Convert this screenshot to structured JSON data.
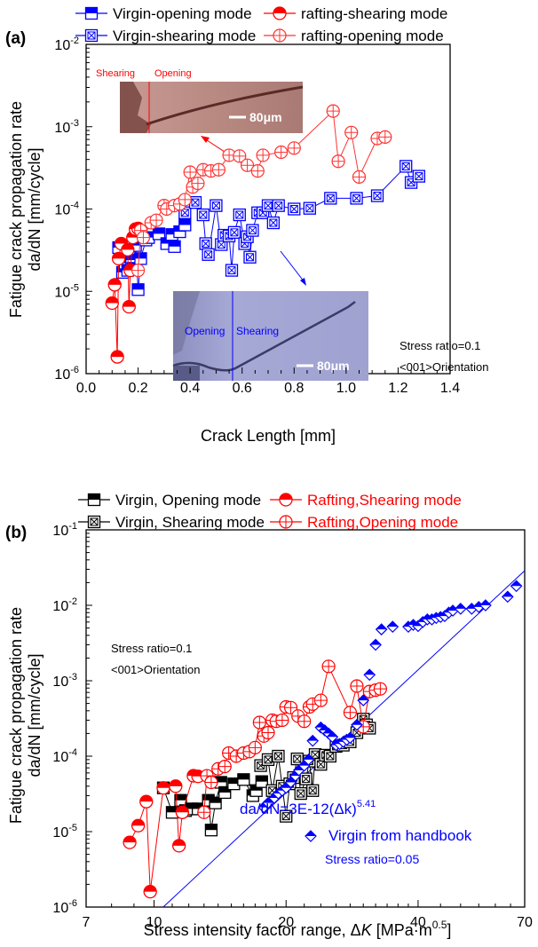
{
  "chart_data": [
    {
      "panel_label": "(a)",
      "type": "scatter",
      "xlabel": "Crack Length [mm]",
      "ylabel_line1": "Fatigue crack propagation rate",
      "ylabel_line2": "da/dN [mm/cycle]",
      "xscale": "linear",
      "yscale": "log",
      "xlim": [
        0.0,
        1.4
      ],
      "ylim": [
        1e-06,
        0.01
      ],
      "xticks": [
        "0.0",
        "0.2",
        "0.4",
        "0.6",
        "0.8",
        "1.0",
        "1.2",
        "1.4"
      ],
      "xtick_values": [
        0.0,
        0.2,
        0.4,
        0.6,
        0.8,
        1.0,
        1.2,
        1.4
      ],
      "yticks": [
        {
          "base": "10",
          "exp": "-6",
          "value": 1e-06
        },
        {
          "base": "10",
          "exp": "-5",
          "value": 1e-05
        },
        {
          "base": "10",
          "exp": "-4",
          "value": 0.0001
        },
        {
          "base": "10",
          "exp": "-3",
          "value": 0.001
        },
        {
          "base": "10",
          "exp": "-2",
          "value": 0.01
        }
      ],
      "legend_position": "top",
      "legend": [
        {
          "label": "Virgin-opening mode",
          "color": "#0000ff",
          "marker": "half-square"
        },
        {
          "label": "rafting-shearing mode",
          "color": "#ff0000",
          "marker": "half-circle"
        },
        {
          "label": "Virgin-shearing mode",
          "color": "#0000ff",
          "marker": "crossed-square"
        },
        {
          "label": "rafting-opening mode",
          "color": "#ff3333",
          "marker": "crossed-circle"
        }
      ],
      "annotations": [
        {
          "text": "Stress ratio=0.1"
        },
        {
          "text": "<001>Orientation"
        },
        {
          "text": "Shearing",
          "color": "#ff0000"
        },
        {
          "text": "Opening",
          "color": "#ff0000"
        },
        {
          "text": "Opening",
          "color": "#0000ff"
        },
        {
          "text": "Shearing",
          "color": "#0000ff"
        },
        {
          "text": "80μm"
        },
        {
          "text": "80μm"
        }
      ],
      "series": [
        {
          "name": "Virgin-opening mode",
          "color": "#0000ff",
          "marker": "half-square",
          "x": [
            0.125,
            0.14,
            0.15,
            0.16,
            0.175,
            0.18,
            0.19,
            0.2,
            0.21,
            0.23,
            0.24,
            0.28,
            0.31,
            0.33,
            0.34,
            0.36,
            0.38
          ],
          "y": [
            3.4e-05,
            1.7e-05,
            2.2e-05,
            1.8e-05,
            2.4e-05,
            1.9e-05,
            3.6e-05,
            1.05e-05,
            2.5e-05,
            4.2e-05,
            4.5e-05,
            5e-05,
            3.8e-05,
            4.9e-05,
            3.5e-05,
            5.3e-05,
            6.4e-05
          ]
        },
        {
          "name": "Virgin-shearing mode",
          "color": "#0000ff",
          "marker": "crossed-square",
          "x": [
            0.38,
            0.42,
            0.45,
            0.46,
            0.47,
            0.5,
            0.52,
            0.53,
            0.55,
            0.56,
            0.57,
            0.59,
            0.61,
            0.62,
            0.63,
            0.64,
            0.66,
            0.68,
            0.7,
            0.72,
            0.74,
            0.8,
            0.86,
            0.94,
            1.04,
            1.12,
            1.23,
            1.25,
            1.28
          ],
          "y": [
            9e-05,
            0.00012,
            8.5e-05,
            3.8e-05,
            2.8e-05,
            0.00011,
            3.7e-05,
            4.8e-05,
            4.7e-05,
            1.8e-05,
            5.2e-05,
            8.5e-05,
            3.8e-05,
            4.6e-05,
            2.6e-05,
            5.5e-05,
            9e-05,
            9e-05,
            0.00011,
            6.8e-05,
            0.00011,
            0.0001,
            0.000102,
            0.000135,
            0.000135,
            0.000145,
            0.00033,
            0.00021,
            0.00025
          ]
        },
        {
          "name": "rafting-shearing mode",
          "color": "#ff0000",
          "marker": "half-circle",
          "x": [
            0.1,
            0.11,
            0.12,
            0.125,
            0.135,
            0.16,
            0.165,
            0.17,
            0.18,
            0.19,
            0.2
          ],
          "y": [
            7.2e-06,
            1.2e-05,
            1.6e-06,
            2.5e-05,
            3.8e-05,
            3.2e-05,
            6.5e-06,
            1.8e-05,
            4.5e-05,
            5.7e-05,
            5.8e-05
          ]
        },
        {
          "name": "rafting-opening mode",
          "color": "#ff3333",
          "marker": "crossed-circle",
          "x": [
            0.2,
            0.21,
            0.22,
            0.25,
            0.27,
            0.3,
            0.31,
            0.34,
            0.36,
            0.38,
            0.4,
            0.41,
            0.43,
            0.45,
            0.48,
            0.51,
            0.55,
            0.59,
            0.62,
            0.66,
            0.68,
            0.75,
            0.8,
            0.95,
            0.97,
            1.02,
            1.05,
            1.12,
            1.15
          ],
          "y": [
            1.8e-05,
            5.5e-05,
            4.5e-05,
            6.8e-05,
            7.3e-05,
            0.00011,
            0.0001,
            0.00011,
            0.000115,
            0.00013,
            0.00028,
            0.000185,
            0.000205,
            0.0003,
            0.00029,
            0.0003,
            0.00045,
            0.00044,
            0.00034,
            0.00029,
            0.00045,
            0.00049,
            0.00055,
            0.00155,
            0.00038,
            0.00085,
            0.000245,
            0.00072,
            0.00075
          ]
        }
      ]
    },
    {
      "panel_label": "(b)",
      "type": "scatter",
      "xlabel": "Stress intensity factor range, ΔK [MPa·m",
      "xlabel_italic": "K",
      "xlabel_prefix": "Stress intensity factor range, Δ",
      "xlabel_suffix": " [MPa·m",
      "xlabel_sup": "0.5",
      "xlabel_end": "]",
      "ylabel_line1": "Fatigue crack propagation rate",
      "ylabel_line2": "da/dN [mm/cycle]",
      "xscale": "log",
      "yscale": "log",
      "xlim": [
        7,
        70
      ],
      "ylim": [
        1e-06,
        0.1
      ],
      "xticks": [
        "7",
        "10",
        "20",
        "40",
        "70"
      ],
      "xtick_values": [
        7,
        10,
        20,
        40,
        70
      ],
      "yticks": [
        {
          "base": "10",
          "exp": "-6",
          "value": 1e-06
        },
        {
          "base": "10",
          "exp": "-5",
          "value": 1e-05
        },
        {
          "base": "10",
          "exp": "-4",
          "value": 0.0001
        },
        {
          "base": "10",
          "exp": "-3",
          "value": 0.001
        },
        {
          "base": "10",
          "exp": "-2",
          "value": 0.01
        },
        {
          "base": "10",
          "exp": "-1",
          "value": 0.1
        }
      ],
      "legend_position": "top",
      "legend": [
        {
          "label": "Virgin, Opening mode",
          "color": "#000000",
          "text_color": "#000000",
          "marker": "half-square"
        },
        {
          "label": "Rafting,Shearing mode",
          "color": "#ff0000",
          "text_color": "#ff0000",
          "marker": "half-circle"
        },
        {
          "label": "Virgin, Shearing mode",
          "color": "#000000",
          "text_color": "#000000",
          "marker": "crossed-square"
        },
        {
          "label": "Rafting,Opening mode",
          "color": "#ff0000",
          "text_color": "#ff0000",
          "marker": "crossed-circle"
        }
      ],
      "annotations": [
        {
          "text": "Stress ratio=0.1"
        },
        {
          "text": "<001>Orientation"
        },
        {
          "text": "da/dN=3E-12(Δk)",
          "sup": "5.41",
          "color": "#0000ff"
        },
        {
          "text": "Virgin from handbook",
          "color": "#0000ff"
        },
        {
          "text": "Stress ratio=0.05",
          "color": "#0000ff"
        }
      ],
      "fit_line": {
        "label": "da/dN=3E-12(Δk)^5.41",
        "C": 3e-12,
        "m": 5.41,
        "color": "#0000ff",
        "x_range": [
          10.3,
          70
        ]
      },
      "series": [
        {
          "name": "Virgin, Opening mode",
          "color": "#000000",
          "marker": "half-square",
          "x": [
            10.5,
            11.0,
            11.5,
            11.8,
            12.2,
            12.6,
            13.3,
            13.5,
            13.8,
            14.2,
            14.5,
            15.2,
            16.0,
            16.8,
            17.1,
            17.6
          ],
          "y": [
            3.8e-05,
            1.8e-05,
            2.6e-05,
            1.9e-05,
            2e-05,
            2e-05,
            2.6e-05,
            1.05e-05,
            2.4e-05,
            4.5e-05,
            3.3e-05,
            4.3e-05,
            4.9e-05,
            3e-05,
            3.5e-05,
            4.6e-05
          ]
        },
        {
          "name": "Virgin, Shearing mode",
          "color": "#000000",
          "marker": "crossed-square",
          "x": [
            17.5,
            18.2,
            18.6,
            19.2,
            19.6,
            20.0,
            20.4,
            20.8,
            21.2,
            21.6,
            22.2,
            22.6,
            23.0,
            23.3,
            24.0,
            24.6,
            25.2,
            26.0,
            27.0,
            28.0,
            29.0,
            30.0,
            30.5,
            31.0
          ],
          "y": [
            7.5e-05,
            9e-05,
            3.5e-05,
            0.0001,
            4e-05,
            1.6e-05,
            4.3e-05,
            5.2e-05,
            9.2e-05,
            3.2e-05,
            5e-05,
            8.6e-05,
            3.5e-05,
            0.000105,
            7.8e-05,
            0.000103,
            0.0001,
            0.000135,
            0.00014,
            0.000155,
            0.000205,
            0.00031,
            0.00026,
            0.000235
          ]
        },
        {
          "name": "Rafting,Shearing mode",
          "color": "#ff0000",
          "marker": "half-circle",
          "x": [
            8.8,
            9.2,
            9.6,
            9.8,
            10.5,
            11.2,
            11.4,
            11.6,
            12.3,
            12.6
          ],
          "y": [
            7.2e-06,
            1.2e-05,
            2.5e-05,
            1.6e-06,
            3.8e-05,
            4e-05,
            6.5e-06,
            1.8e-05,
            5.5e-05,
            5.4e-05
          ]
        },
        {
          "name": "Rafting,Opening mode",
          "color": "#ff0000",
          "marker": "crossed-circle",
          "x": [
            13.0,
            13.2,
            13.5,
            14.0,
            14.5,
            14.8,
            15.4,
            16.0,
            16.5,
            17.0,
            17.4,
            17.8,
            18.2,
            18.6,
            19.0,
            19.6,
            20.0,
            20.5,
            21.3,
            22.0,
            22.6,
            23.0,
            24.0,
            25.0,
            28.0,
            29.0,
            30.0,
            31.0,
            32.0,
            32.8
          ],
          "y": [
            1.8e-05,
            5.5e-05,
            4.5e-05,
            6.8e-05,
            7.3e-05,
            0.00011,
            0.0001,
            0.00011,
            0.000115,
            0.00013,
            0.00028,
            0.000185,
            0.000205,
            0.0003,
            0.00029,
            0.0003,
            0.00045,
            0.00044,
            0.00034,
            0.00029,
            0.00045,
            0.00049,
            0.00055,
            0.00155,
            0.00038,
            0.00085,
            0.000245,
            0.00072,
            0.00075,
            0.00078
          ]
        },
        {
          "name": "Virgin from handbook",
          "color": "#0000ff",
          "marker": "diamond",
          "x": [
            17.8,
            18.2,
            18.8,
            19.2,
            19.6,
            20.0,
            20.5,
            21.0,
            21.4,
            22.0,
            22.5,
            23.0,
            24.0,
            24.5,
            25.0,
            25.5,
            26.0,
            26.5,
            27.0,
            27.5,
            28.0,
            29.0,
            30.0,
            31.0,
            32.0,
            33.0,
            35.0,
            38.0,
            39.0,
            40.0,
            41.0,
            42.0,
            43.0,
            44.0,
            45.0,
            46.0,
            47.0,
            48.0,
            50.0,
            53.0,
            55.0,
            57.0,
            64.0,
            67.0
          ],
          "y": [
            2.1e-05,
            2.4e-05,
            2.8e-05,
            3.2e-05,
            3.5e-05,
            3.8e-05,
            4.5e-05,
            5.5e-05,
            6.5e-05,
            7.5e-05,
            9e-05,
            0.00016,
            0.00024,
            0.00022,
            0.0002,
            0.00018,
            0.00014,
            0.000145,
            0.000155,
            0.000165,
            0.000175,
            0.00026,
            0.00055,
            0.0012,
            0.003,
            0.0048,
            0.0052,
            0.0052,
            0.0055,
            0.0053,
            0.006,
            0.0065,
            0.0065,
            0.0068,
            0.007,
            0.0072,
            0.008,
            0.0085,
            0.009,
            0.009,
            0.0095,
            0.01,
            0.013,
            0.018
          ]
        }
      ]
    }
  ]
}
